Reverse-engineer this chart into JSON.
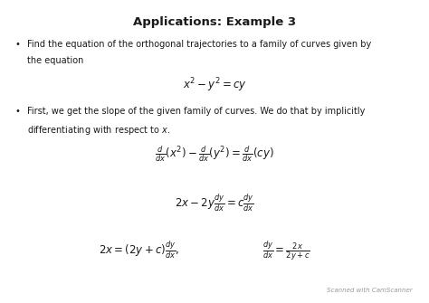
{
  "title": "Applications: Example 3",
  "background_color": "#ffffff",
  "text_color": "#1a1a1a",
  "watermark": "Scanned with CamScanner",
  "bullet1_line1": "Find the equation of the orthogonal trajectories to a family of curves given by",
  "bullet1_line2": "the equation",
  "eq1": "$x^2 - y^2 = cy$",
  "bullet2_line1": "First, we get the slope of the given family of curves. We do that by implicitly",
  "bullet2_line2": "differentiating with respect to $x$.",
  "eq2": "$\\frac{d}{dx}(x^2) - \\frac{d}{dx}(y^2) = \\frac{d}{dx}(cy)$",
  "eq3": "$2x - 2y\\frac{dy}{dx} = c\\frac{dy}{dx}$",
  "eq4a": "$2x = (2y + c)\\frac{dy}{dx},$",
  "eq4b": "$\\frac{dy}{dx} = \\frac{2x}{2y + c}$",
  "title_fontsize": 9.5,
  "body_fontsize": 7.0,
  "eq_fontsize": 8.5,
  "figwidth": 4.74,
  "figheight": 3.35,
  "dpi": 100
}
